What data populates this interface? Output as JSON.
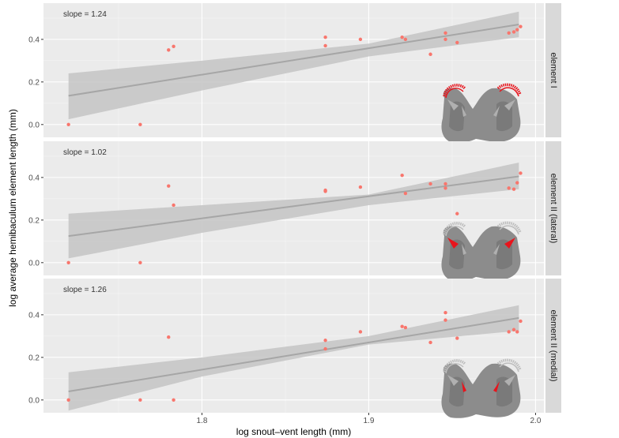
{
  "chart_data": {
    "type": "scatter",
    "xlabel": "log snout–vent length (mm)",
    "ylabel": "log average hemibaculum element length (mm)",
    "xlim": [
      1.705,
      2.005
    ],
    "x_ticks": [
      1.8,
      1.9,
      2.0
    ],
    "x_tick_labels": [
      "1.8",
      "1.9",
      "2.0"
    ],
    "y_ticks": [
      0.0,
      0.2,
      0.4
    ],
    "y_tick_labels": [
      "0.0",
      "0.2",
      "0.4"
    ],
    "grid": true,
    "colors": {
      "points": "#f8766d",
      "fit_line": "#a6a6a6",
      "ribbon": "#c4c4c4",
      "panel_bg": "#ebebeb",
      "strip_bg": "#d9d9d9",
      "highlight": "#e8141c",
      "illustration": "#8c8c8c"
    },
    "panels": [
      {
        "strip_label": "element I",
        "annotation": "slope = 1.24",
        "ylim": [
          -0.06,
          0.57
        ],
        "fit": {
          "x": [
            1.72,
            1.99
          ],
          "y": [
            0.135,
            0.47
          ]
        },
        "ribbon": {
          "x": [
            1.72,
            1.8,
            1.9,
            1.99
          ],
          "upper": [
            0.24,
            0.3,
            0.38,
            0.53
          ],
          "lower": [
            0.025,
            0.16,
            0.32,
            0.41
          ]
        },
        "highlight_part": "outer",
        "points": [
          {
            "x": 1.72,
            "y": 0.0
          },
          {
            "x": 1.763,
            "y": 0.0
          },
          {
            "x": 1.78,
            "y": 0.35
          },
          {
            "x": 1.783,
            "y": 0.367
          },
          {
            "x": 1.874,
            "y": 0.41
          },
          {
            "x": 1.874,
            "y": 0.37
          },
          {
            "x": 1.895,
            "y": 0.4
          },
          {
            "x": 1.92,
            "y": 0.41
          },
          {
            "x": 1.922,
            "y": 0.4
          },
          {
            "x": 1.937,
            "y": 0.33
          },
          {
            "x": 1.946,
            "y": 0.4
          },
          {
            "x": 1.946,
            "y": 0.43
          },
          {
            "x": 1.953,
            "y": 0.385
          },
          {
            "x": 1.984,
            "y": 0.43
          },
          {
            "x": 1.987,
            "y": 0.435
          },
          {
            "x": 1.989,
            "y": 0.445
          },
          {
            "x": 1.991,
            "y": 0.46
          }
        ]
      },
      {
        "strip_label": "element II (lateral)",
        "annotation": "slope = 1.02",
        "ylim": [
          -0.06,
          0.57
        ],
        "fit": {
          "x": [
            1.72,
            1.99
          ],
          "y": [
            0.125,
            0.405
          ]
        },
        "ribbon": {
          "x": [
            1.72,
            1.8,
            1.9,
            1.99
          ],
          "upper": [
            0.23,
            0.27,
            0.32,
            0.47
          ],
          "lower": [
            0.02,
            0.14,
            0.27,
            0.345
          ]
        },
        "highlight_part": "lateral",
        "points": [
          {
            "x": 1.72,
            "y": 0.0
          },
          {
            "x": 1.763,
            "y": 0.0
          },
          {
            "x": 1.78,
            "y": 0.36
          },
          {
            "x": 1.783,
            "y": 0.27
          },
          {
            "x": 1.874,
            "y": 0.34
          },
          {
            "x": 1.874,
            "y": 0.335
          },
          {
            "x": 1.895,
            "y": 0.355
          },
          {
            "x": 1.92,
            "y": 0.41
          },
          {
            "x": 1.922,
            "y": 0.325
          },
          {
            "x": 1.937,
            "y": 0.37
          },
          {
            "x": 1.946,
            "y": 0.37
          },
          {
            "x": 1.946,
            "y": 0.35
          },
          {
            "x": 1.953,
            "y": 0.23
          },
          {
            "x": 1.984,
            "y": 0.35
          },
          {
            "x": 1.987,
            "y": 0.345
          },
          {
            "x": 1.989,
            "y": 0.375
          },
          {
            "x": 1.991,
            "y": 0.42
          }
        ]
      },
      {
        "strip_label": "element II (medial)",
        "annotation": "slope = 1.26",
        "ylim": [
          -0.06,
          0.57
        ],
        "fit": {
          "x": [
            1.72,
            1.99
          ],
          "y": [
            0.04,
            0.385
          ]
        },
        "ribbon": {
          "x": [
            1.72,
            1.8,
            1.9,
            1.99
          ],
          "upper": [
            0.13,
            0.2,
            0.3,
            0.445
          ],
          "lower": [
            -0.05,
            0.11,
            0.26,
            0.325
          ]
        },
        "highlight_part": "medial",
        "points": [
          {
            "x": 1.72,
            "y": 0.0
          },
          {
            "x": 1.763,
            "y": 0.0
          },
          {
            "x": 1.78,
            "y": 0.295
          },
          {
            "x": 1.783,
            "y": 0.0
          },
          {
            "x": 1.874,
            "y": 0.28
          },
          {
            "x": 1.874,
            "y": 0.24
          },
          {
            "x": 1.895,
            "y": 0.32
          },
          {
            "x": 1.92,
            "y": 0.345
          },
          {
            "x": 1.922,
            "y": 0.34
          },
          {
            "x": 1.937,
            "y": 0.27
          },
          {
            "x": 1.946,
            "y": 0.41
          },
          {
            "x": 1.946,
            "y": 0.375
          },
          {
            "x": 1.953,
            "y": 0.29
          },
          {
            "x": 1.984,
            "y": 0.32
          },
          {
            "x": 1.987,
            "y": 0.33
          },
          {
            "x": 1.989,
            "y": 0.32
          },
          {
            "x": 1.991,
            "y": 0.37
          }
        ]
      }
    ]
  }
}
